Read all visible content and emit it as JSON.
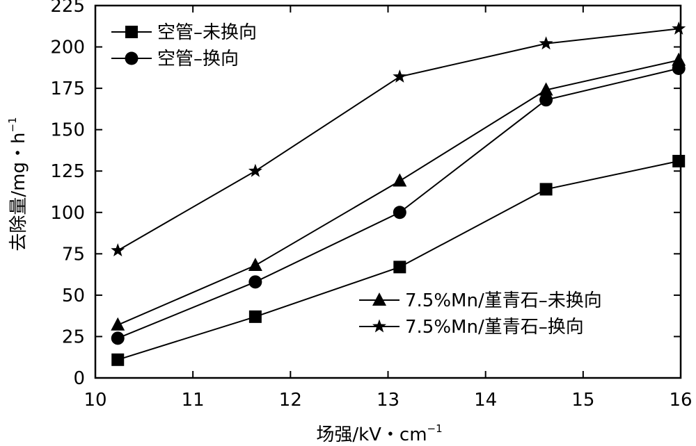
{
  "chart_data": {
    "type": "line",
    "xlabel": "场强/kV・cm",
    "xlabel_sup": "−1",
    "ylabel": "去除量/mg・h",
    "ylabel_sup": "−1",
    "xlim": [
      10,
      16
    ],
    "ylim": [
      0,
      225
    ],
    "xticks": [
      10,
      11,
      12,
      13,
      14,
      15,
      16
    ],
    "yticks": [
      0,
      25,
      50,
      75,
      100,
      125,
      150,
      175,
      200,
      225
    ],
    "grid": false,
    "legend": [
      {
        "placement": "top-left",
        "entries": [
          0,
          1
        ]
      },
      {
        "placement": "bottom-right",
        "entries": [
          2,
          3
        ]
      }
    ],
    "series": [
      {
        "name": "空管–未换向",
        "marker": "square",
        "x": [
          10.23,
          11.64,
          13.12,
          14.62,
          15.98
        ],
        "y": [
          11,
          37,
          67,
          114,
          131
        ]
      },
      {
        "name": "空管–换向",
        "marker": "circle",
        "x": [
          10.23,
          11.64,
          13.12,
          14.62,
          15.98
        ],
        "y": [
          24,
          58,
          100,
          168,
          187
        ]
      },
      {
        "name": "7.5%Mn/堇青石–未换向",
        "marker": "triangle",
        "x": [
          10.23,
          11.64,
          13.12,
          14.62,
          15.98
        ],
        "y": [
          32,
          68,
          119,
          174,
          192
        ]
      },
      {
        "name": "7.5%Mn/堇青石–换向",
        "marker": "star",
        "x": [
          10.23,
          11.64,
          13.12,
          14.62,
          15.98
        ],
        "y": [
          77,
          125,
          182,
          202,
          211
        ]
      }
    ]
  }
}
